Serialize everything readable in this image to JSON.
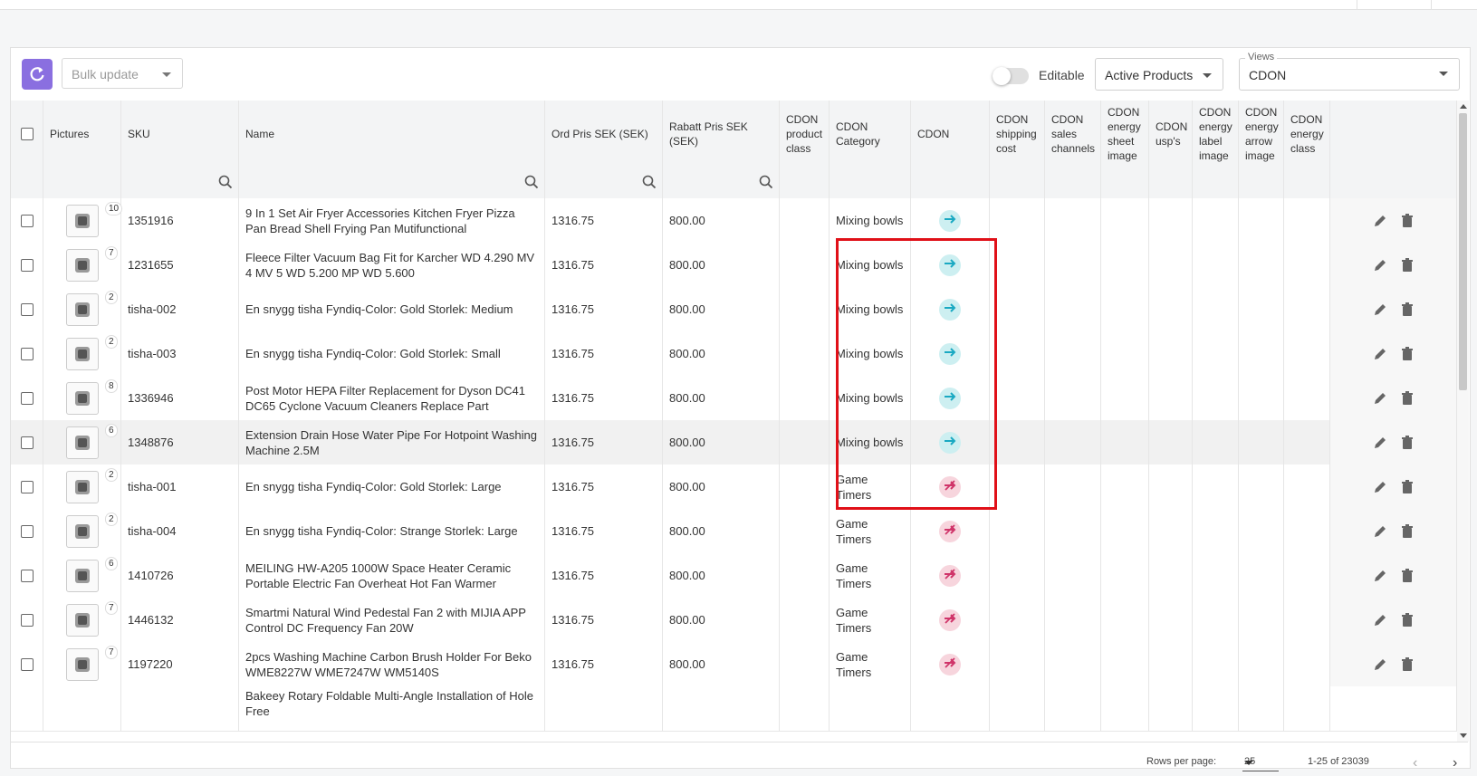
{
  "toolbar": {
    "bulk_update_placeholder": "Bulk update",
    "editable_label": "Editable",
    "filter_select_value": "Active Products",
    "views_legend": "Views",
    "views_value": "CDON"
  },
  "columns": [
    "Pictures",
    "SKU",
    "Name",
    "Ord Pris SEK (SEK)",
    "Rabatt Pris SEK (SEK)",
    "CDON product class",
    "CDON Category",
    "CDON",
    "CDON shipping cost",
    "CDON sales channels",
    "CDON energy sheet image",
    "CDON usp's",
    "CDON energy label image",
    "CDON energy arrow image",
    "CDON energy class"
  ],
  "rows": [
    {
      "image_count": "10",
      "sku": "1351916",
      "name": "9 In 1 Set Air Fryer Accessories Kitchen Fryer Pizza Pan Bread Shell Frying Pan Mutifunctional",
      "ord_price": "1316.75",
      "rabatt_price": "800.00",
      "category": "Mixing bowls",
      "cdon_status": "arrow-right-icon"
    },
    {
      "image_count": "7",
      "sku": "1231655",
      "name": "Fleece Filter Vacuum Bag Fit for Karcher WD 4.290 MV 4 MV 5 WD 5.200 MP WD 5.600",
      "ord_price": "1316.75",
      "rabatt_price": "800.00",
      "category": "Mixing bowls",
      "cdon_status": "arrow-right-icon"
    },
    {
      "image_count": "2",
      "sku": "tisha-002",
      "name": "En snygg tisha Fyndiq-Color: Gold Storlek: Medium",
      "ord_price": "1316.75",
      "rabatt_price": "800.00",
      "category": "Mixing bowls",
      "cdon_status": "arrow-right-icon"
    },
    {
      "image_count": "2",
      "sku": "tisha-003",
      "name": "En snygg tisha Fyndiq-Color: Gold Storlek: Small",
      "ord_price": "1316.75",
      "rabatt_price": "800.00",
      "category": "Mixing bowls",
      "cdon_status": "arrow-right-icon"
    },
    {
      "image_count": "8",
      "sku": "1336946",
      "name": "Post Motor HEPA Filter Replacement for Dyson DC41 DC65 Cyclone Vacuum Cleaners Replace Part",
      "ord_price": "1316.75",
      "rabatt_price": "800.00",
      "category": "Mixing bowls",
      "cdon_status": "arrow-right-icon"
    },
    {
      "image_count": "6",
      "sku": "1348876",
      "name": "Extension Drain Hose Water Pipe For Hotpoint Washing Machine 2.5M",
      "ord_price": "1316.75",
      "rabatt_price": "800.00",
      "category": "Mixing bowls",
      "cdon_status": "arrow-right-icon"
    },
    {
      "image_count": "2",
      "sku": "tisha-001",
      "name": "En snygg tisha Fyndiq-Color: Gold Storlek: Large",
      "ord_price": "1316.75",
      "rabatt_price": "800.00",
      "category": "Game Timers",
      "cdon_status": "arrow-off-icon"
    },
    {
      "image_count": "2",
      "sku": "tisha-004",
      "name": "En snygg tisha Fyndiq-Color: Strange Storlek: Large",
      "ord_price": "1316.75",
      "rabatt_price": "800.00",
      "category": "Game Timers",
      "cdon_status": "arrow-off-icon"
    },
    {
      "image_count": "6",
      "sku": "1410726",
      "name": "MEILING HW-A205 1000W Space Heater Ceramic Portable Electric Fan Overheat Hot Fan Warmer",
      "ord_price": "1316.75",
      "rabatt_price": "800.00",
      "category": "Game Timers",
      "cdon_status": "arrow-off-icon"
    },
    {
      "image_count": "7",
      "sku": "1446132",
      "name": "Smartmi Natural Wind Pedestal Fan 2 with MIJIA APP Control DC Frequency Fan 20W",
      "ord_price": "1316.75",
      "rabatt_price": "800.00",
      "category": "Game Timers",
      "cdon_status": "arrow-off-icon"
    },
    {
      "image_count": "7",
      "sku": "1197220",
      "name": "2pcs Washing Machine Carbon Brush Holder For Beko WME8227W WME7247W WM5140S",
      "ord_price": "1316.75",
      "rabatt_price": "800.00",
      "category": "Game Timers",
      "cdon_status": "arrow-off-icon"
    }
  ],
  "partial_row_name": "Bakeey Rotary Foldable Multi-Angle Installation of Hole Free",
  "footer": {
    "rows_per_page_label": "Rows per page:",
    "rows_per_page_value": "25",
    "range": "1-25 of 23039"
  },
  "colors": {
    "accent": "#8a6fe0",
    "highlight_border": "#e01018",
    "status_on": "#1aa9c2",
    "status_off": "#d0356a"
  }
}
